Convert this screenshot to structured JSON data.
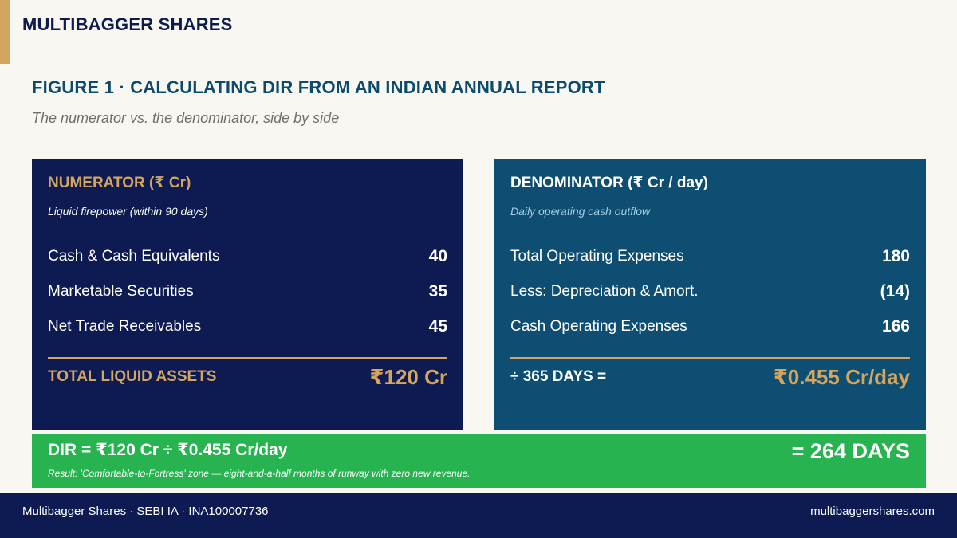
{
  "header": {
    "brand": "MULTIBAGGER SHARES",
    "figure_title": "FIGURE 1  ·  CALCULATING DIR FROM AN INDIAN ANNUAL REPORT",
    "figure_subtitle": "The numerator vs. the denominator, side by side",
    "accent_color": "#d4a55e"
  },
  "numerator": {
    "title": "NUMERATOR  (₹ Cr)",
    "description": "Liquid firepower (within 90 days)",
    "background": "#0e1b52",
    "rows": [
      {
        "label": "Cash & Cash Equivalents",
        "value": "40"
      },
      {
        "label": "Marketable Securities",
        "value": "35"
      },
      {
        "label": "Net Trade Receivables",
        "value": "45"
      }
    ],
    "total_label": "TOTAL LIQUID ASSETS",
    "total_value": "₹120 Cr"
  },
  "denominator": {
    "title": "DENOMINATOR  (₹ Cr / day)",
    "description": "Daily operating cash outflow",
    "background": "#0d4e72",
    "rows": [
      {
        "label": "Total Operating Expenses",
        "value": "180"
      },
      {
        "label": "Less: Depreciation & Amort.",
        "value": "(14)"
      },
      {
        "label": "Cash Operating Expenses",
        "value": "166"
      }
    ],
    "total_label": "÷ 365 DAYS =",
    "total_value": "₹0.455 Cr/day"
  },
  "result": {
    "formula": "DIR  =  ₹120 Cr  ÷  ₹0.455 Cr/day",
    "days": "= 264 DAYS",
    "note": "Result: 'Comfortable-to-Fortress' zone — eight-and-a-half months of runway with zero new revenue.",
    "background": "#27b34f"
  },
  "footer": {
    "left": "Multibagger Shares  ·  SEBI IA  ·  INA100007736",
    "right": "multibaggershares.com"
  }
}
